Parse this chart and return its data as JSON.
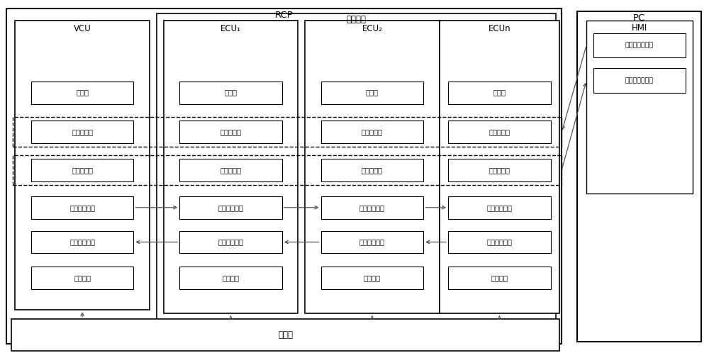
{
  "bg_color": "#ffffff",
  "fig_width": 10.0,
  "fig_height": 4.98,
  "labels": {
    "RCP": "RCP",
    "yunxing": "运行环境",
    "VCU": "VCU",
    "ECU1": "ECU₁",
    "ECU2": "ECU₂",
    "ECUn": "ECUn",
    "PC": "PC",
    "HMI": "HMI",
    "zhuchengxu": "主程序",
    "canshu": "参数集",
    "kongzhi": "控制变量集",
    "zhuangtai": "状态变量集",
    "baowenfa": "报文发送程序",
    "baowenshou": "报文接收程序",
    "kongzhichengxu": "控制程序",
    "baowenjieshou": "报文接收程序",
    "baowenfasong": "报文发送程序",
    "kongzhiinput": "控制变量输入区",
    "zhuangtaioutput": "状态变量输出区"
  }
}
